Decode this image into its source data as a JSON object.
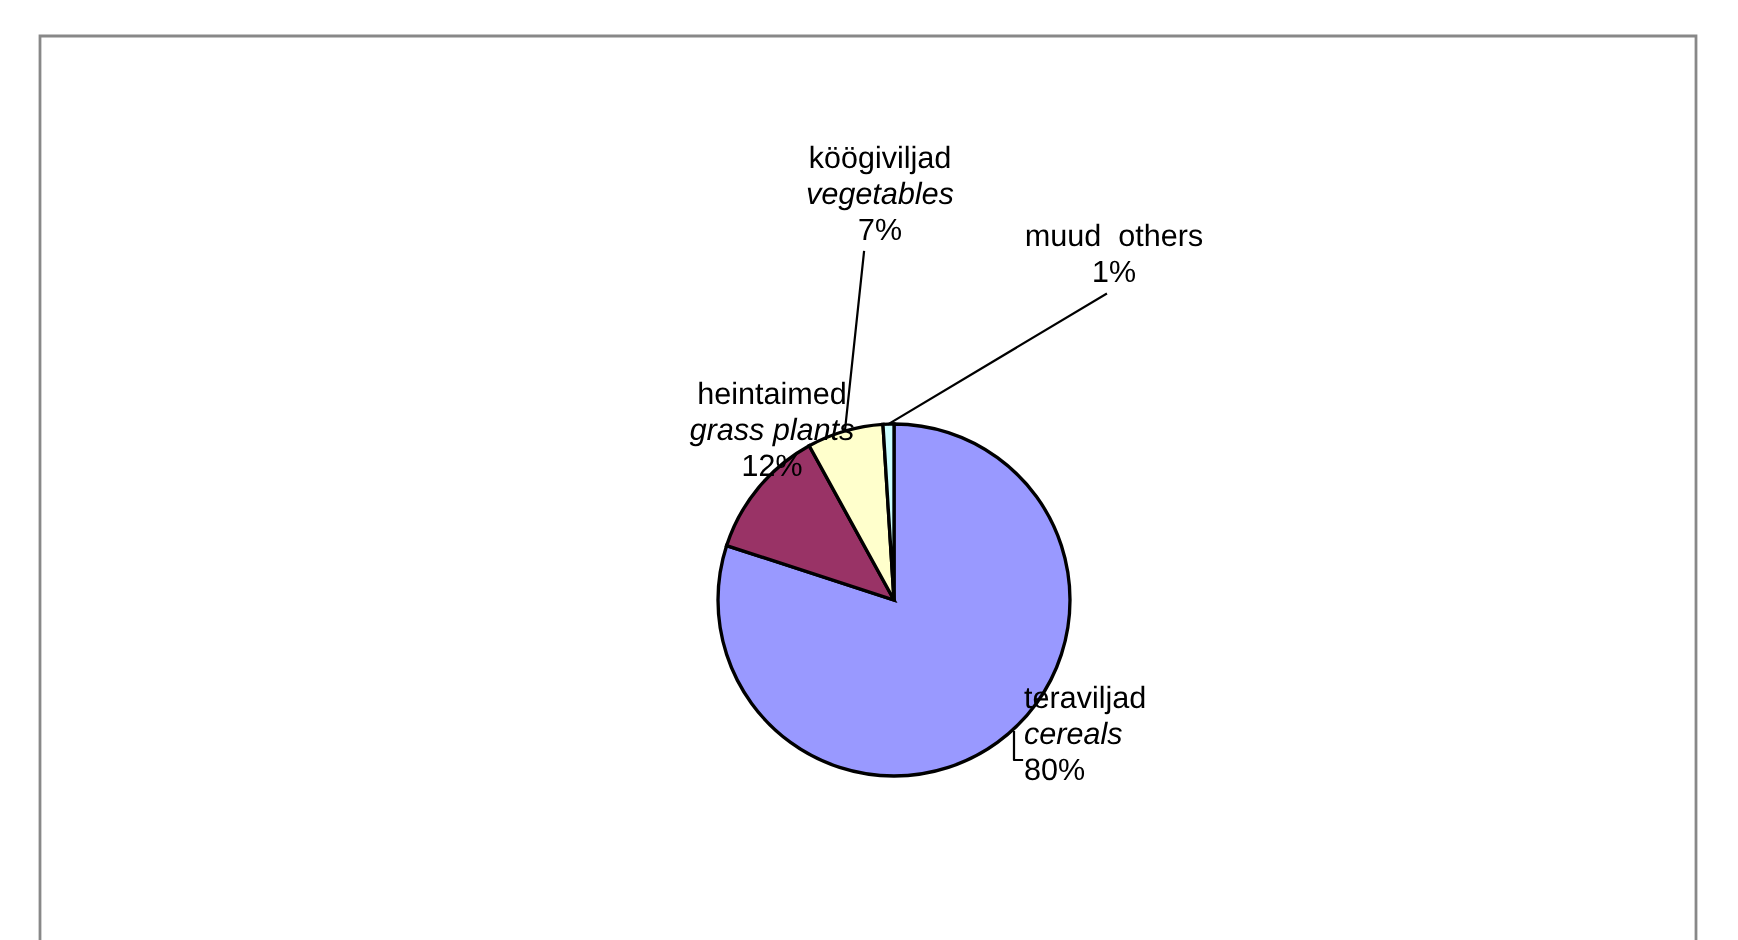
{
  "chart_data": {
    "type": "pie",
    "categories": [
      "teraviljad\ncereals",
      "heintaimed\ngrass plants",
      "köögiviljad\nvegetables",
      "muud  others"
    ],
    "values": [
      80,
      12,
      7,
      1
    ],
    "colors": [
      "#9999ff",
      "#993366",
      "#ffffcc",
      "#ccffff"
    ],
    "value_labels": [
      "80%",
      "12%",
      "7%",
      "1%"
    ],
    "legend": false
  }
}
